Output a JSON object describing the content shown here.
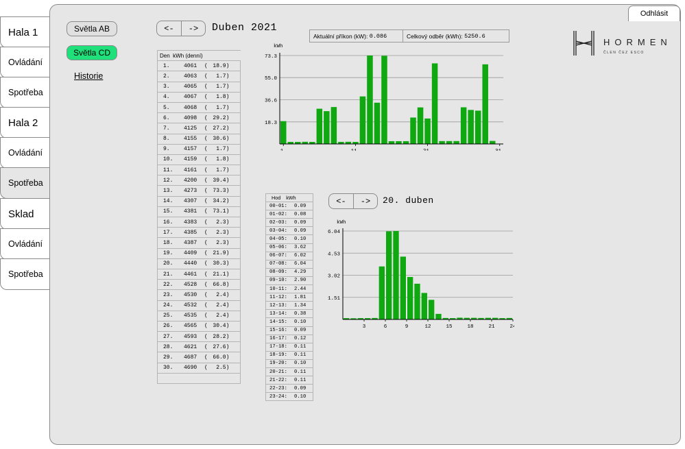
{
  "tabs": [
    {
      "label": "Hala 1",
      "kind": "hall",
      "active": false
    },
    {
      "label": "Ovládání",
      "kind": "sub",
      "active": false
    },
    {
      "label": "Spotřeba",
      "kind": "sub",
      "active": false
    },
    {
      "label": "Hala 2",
      "kind": "hall",
      "active": false
    },
    {
      "label": "Ovládání",
      "kind": "sub",
      "active": false
    },
    {
      "label": "Spotřeba",
      "kind": "sub",
      "active": true
    },
    {
      "label": "Sklad",
      "kind": "hall",
      "active": false
    },
    {
      "label": "Ovládání",
      "kind": "sub",
      "active": false
    },
    {
      "label": "Spotřeba",
      "kind": "sub",
      "active": false
    }
  ],
  "logout_label": "Odhlásit",
  "lights": {
    "ab": "Světla AB",
    "cd": "Světla CD",
    "active_color": "#1fe07a"
  },
  "history_label": "Historie",
  "nav": {
    "prev": "<-",
    "next": "->"
  },
  "month_heading": "Duben 2021",
  "day_heading": "20. duben",
  "info": {
    "power_label": "Aktuální příkon (kW):",
    "power_value": "0.086",
    "total_label": "Celkový odběr (kWh):",
    "total_value": "5250.6"
  },
  "logo": {
    "word": "HORMEN",
    "sub": "ČLEN ČEZ ESCO"
  },
  "bar_color": "#10a810",
  "day_table": {
    "header_day": "Den",
    "header_kwh": "kWh (denní)",
    "rows": [
      [
        "1.",
        "4061",
        "18.9"
      ],
      [
        "2.",
        "4063",
        "1.7"
      ],
      [
        "3.",
        "4065",
        "1.7"
      ],
      [
        "4.",
        "4067",
        "1.8"
      ],
      [
        "5.",
        "4068",
        "1.7"
      ],
      [
        "6.",
        "4098",
        "29.2"
      ],
      [
        "7.",
        "4125",
        "27.2"
      ],
      [
        "8.",
        "4155",
        "30.6"
      ],
      [
        "9.",
        "4157",
        "1.7"
      ],
      [
        "10.",
        "4159",
        "1.8"
      ],
      [
        "11.",
        "4161",
        "1.7"
      ],
      [
        "12.",
        "4200",
        "39.4"
      ],
      [
        "13.",
        "4273",
        "73.3"
      ],
      [
        "14.",
        "4307",
        "34.2"
      ],
      [
        "15.",
        "4381",
        "73.1"
      ],
      [
        "16.",
        "4383",
        "2.3"
      ],
      [
        "17.",
        "4385",
        "2.3"
      ],
      [
        "18.",
        "4387",
        "2.3"
      ],
      [
        "19.",
        "4409",
        "21.9"
      ],
      [
        "20.",
        "4440",
        "30.3"
      ],
      [
        "21.",
        "4461",
        "21.1"
      ],
      [
        "22.",
        "4528",
        "66.8"
      ],
      [
        "23.",
        "4530",
        "2.4"
      ],
      [
        "24.",
        "4532",
        "2.4"
      ],
      [
        "25.",
        "4535",
        "2.4"
      ],
      [
        "26.",
        "4565",
        "30.4"
      ],
      [
        "27.",
        "4593",
        "28.2"
      ],
      [
        "28.",
        "4621",
        "27.6"
      ],
      [
        "29.",
        "4687",
        "66.0"
      ],
      [
        "30.",
        "4690",
        "2.5"
      ]
    ]
  },
  "hour_table": {
    "header_hour": "Hod",
    "header_kwh": "kWh",
    "rows": [
      [
        "00-01:",
        "0.09"
      ],
      [
        "01-02:",
        "0.08"
      ],
      [
        "02-03:",
        "0.09"
      ],
      [
        "03-04:",
        "0.09"
      ],
      [
        "04-05:",
        "0.10"
      ],
      [
        "05-06:",
        "3.62"
      ],
      [
        "06-07:",
        "6.02"
      ],
      [
        "07-08:",
        "6.04"
      ],
      [
        "08-09:",
        "4.29"
      ],
      [
        "09-10:",
        "2.90"
      ],
      [
        "10-11:",
        "2.44"
      ],
      [
        "11-12:",
        "1.81"
      ],
      [
        "12-13:",
        "1.34"
      ],
      [
        "13-14:",
        "0.38"
      ],
      [
        "14-15:",
        "0.10"
      ],
      [
        "15-16:",
        "0.09"
      ],
      [
        "16-17:",
        "0.12"
      ],
      [
        "17-18:",
        "0.11"
      ],
      [
        "18-19:",
        "0.11"
      ],
      [
        "19-20:",
        "0.10"
      ],
      [
        "20-21:",
        "0.11"
      ],
      [
        "21-22:",
        "0.11"
      ],
      [
        "22-23:",
        "0.09"
      ],
      [
        "23-24:",
        "0.10"
      ]
    ]
  },
  "chart_data": [
    {
      "type": "bar",
      "ylabel": "kWh",
      "yticks": [
        "18.3",
        "36.6",
        "55.0",
        "73.3"
      ],
      "ylim": [
        0,
        73.3
      ],
      "xtick_labels": [
        {
          "at": 1,
          "label": "1."
        },
        {
          "at": 11,
          "label": "11."
        },
        {
          "at": 21,
          "label": "21."
        },
        {
          "at": 31,
          "label": "31."
        }
      ],
      "x": [
        1,
        2,
        3,
        4,
        5,
        6,
        7,
        8,
        9,
        10,
        11,
        12,
        13,
        14,
        15,
        16,
        17,
        18,
        19,
        20,
        21,
        22,
        23,
        24,
        25,
        26,
        27,
        28,
        29,
        30
      ],
      "values": [
        18.9,
        1.7,
        1.7,
        1.8,
        1.7,
        29.2,
        27.2,
        30.6,
        1.7,
        1.8,
        1.7,
        39.4,
        73.3,
        34.2,
        73.1,
        2.3,
        2.3,
        2.3,
        21.9,
        30.3,
        21.1,
        66.8,
        2.4,
        2.4,
        2.4,
        30.4,
        28.2,
        27.6,
        66.0,
        2.5
      ],
      "grid": true
    },
    {
      "type": "bar",
      "ylabel": "kWh",
      "yticks": [
        "1.51",
        "3.02",
        "4.53",
        "6.04"
      ],
      "ylim": [
        0,
        6.04
      ],
      "xtick_labels": [
        {
          "at": 3,
          "label": "3"
        },
        {
          "at": 6,
          "label": "6"
        },
        {
          "at": 9,
          "label": "9"
        },
        {
          "at": 12,
          "label": "12"
        },
        {
          "at": 15,
          "label": "15"
        },
        {
          "at": 18,
          "label": "18"
        },
        {
          "at": 21,
          "label": "21"
        },
        {
          "at": 24,
          "label": "24"
        }
      ],
      "x": [
        1,
        2,
        3,
        4,
        5,
        6,
        7,
        8,
        9,
        10,
        11,
        12,
        13,
        14,
        15,
        16,
        17,
        18,
        19,
        20,
        21,
        22,
        23,
        24
      ],
      "values": [
        0.09,
        0.08,
        0.09,
        0.09,
        0.1,
        3.62,
        6.02,
        6.04,
        4.29,
        2.9,
        2.44,
        1.81,
        1.34,
        0.38,
        0.1,
        0.09,
        0.12,
        0.11,
        0.11,
        0.1,
        0.11,
        0.11,
        0.09,
        0.1
      ],
      "grid": true
    }
  ]
}
